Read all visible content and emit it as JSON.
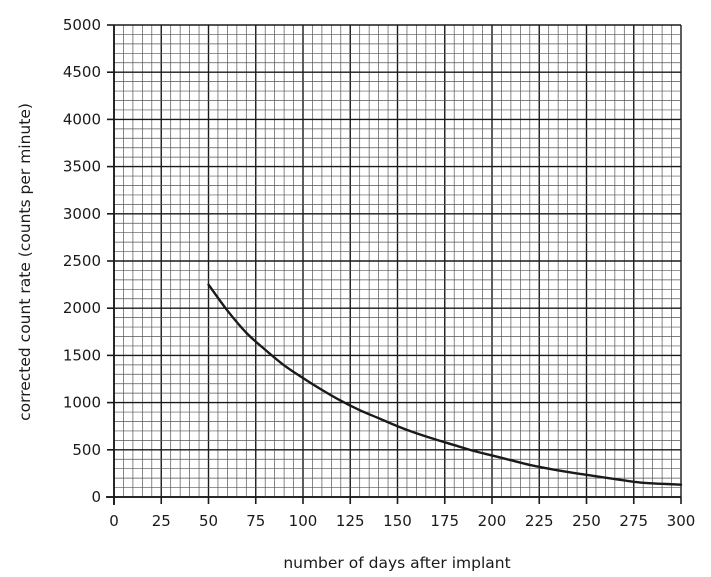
{
  "chart_data": {
    "type": "line",
    "title": "",
    "xlabel": "number of days after implant",
    "ylabel": "corrected count rate (counts per minute)",
    "xlim": [
      0,
      300
    ],
    "ylim": [
      0,
      5000
    ],
    "x_ticks": [
      "0",
      "25",
      "50",
      "75",
      "100",
      "125",
      "150",
      "175",
      "200",
      "225",
      "250",
      "275",
      "300"
    ],
    "y_ticks": [
      "0",
      "500",
      "1000",
      "1500",
      "2000",
      "2500",
      "3000",
      "3500",
      "4000",
      "4500",
      "5000"
    ],
    "grid": true,
    "colors": {
      "line": "#1a1a1a",
      "grid_minor": "#555555",
      "grid_major": "#1a1a1a"
    },
    "series": [
      {
        "name": "",
        "x": [
          50,
          60,
          70,
          80,
          90,
          100,
          110,
          120,
          130,
          140,
          150,
          160,
          170,
          180,
          190,
          200,
          210,
          220,
          230,
          240,
          250,
          260,
          270,
          280,
          290,
          300
        ],
        "y": [
          2250,
          1975,
          1740,
          1560,
          1395,
          1260,
          1135,
          1020,
          920,
          835,
          750,
          675,
          610,
          550,
          490,
          440,
          390,
          340,
          300,
          265,
          235,
          205,
          175,
          150,
          140,
          130
        ]
      }
    ]
  }
}
